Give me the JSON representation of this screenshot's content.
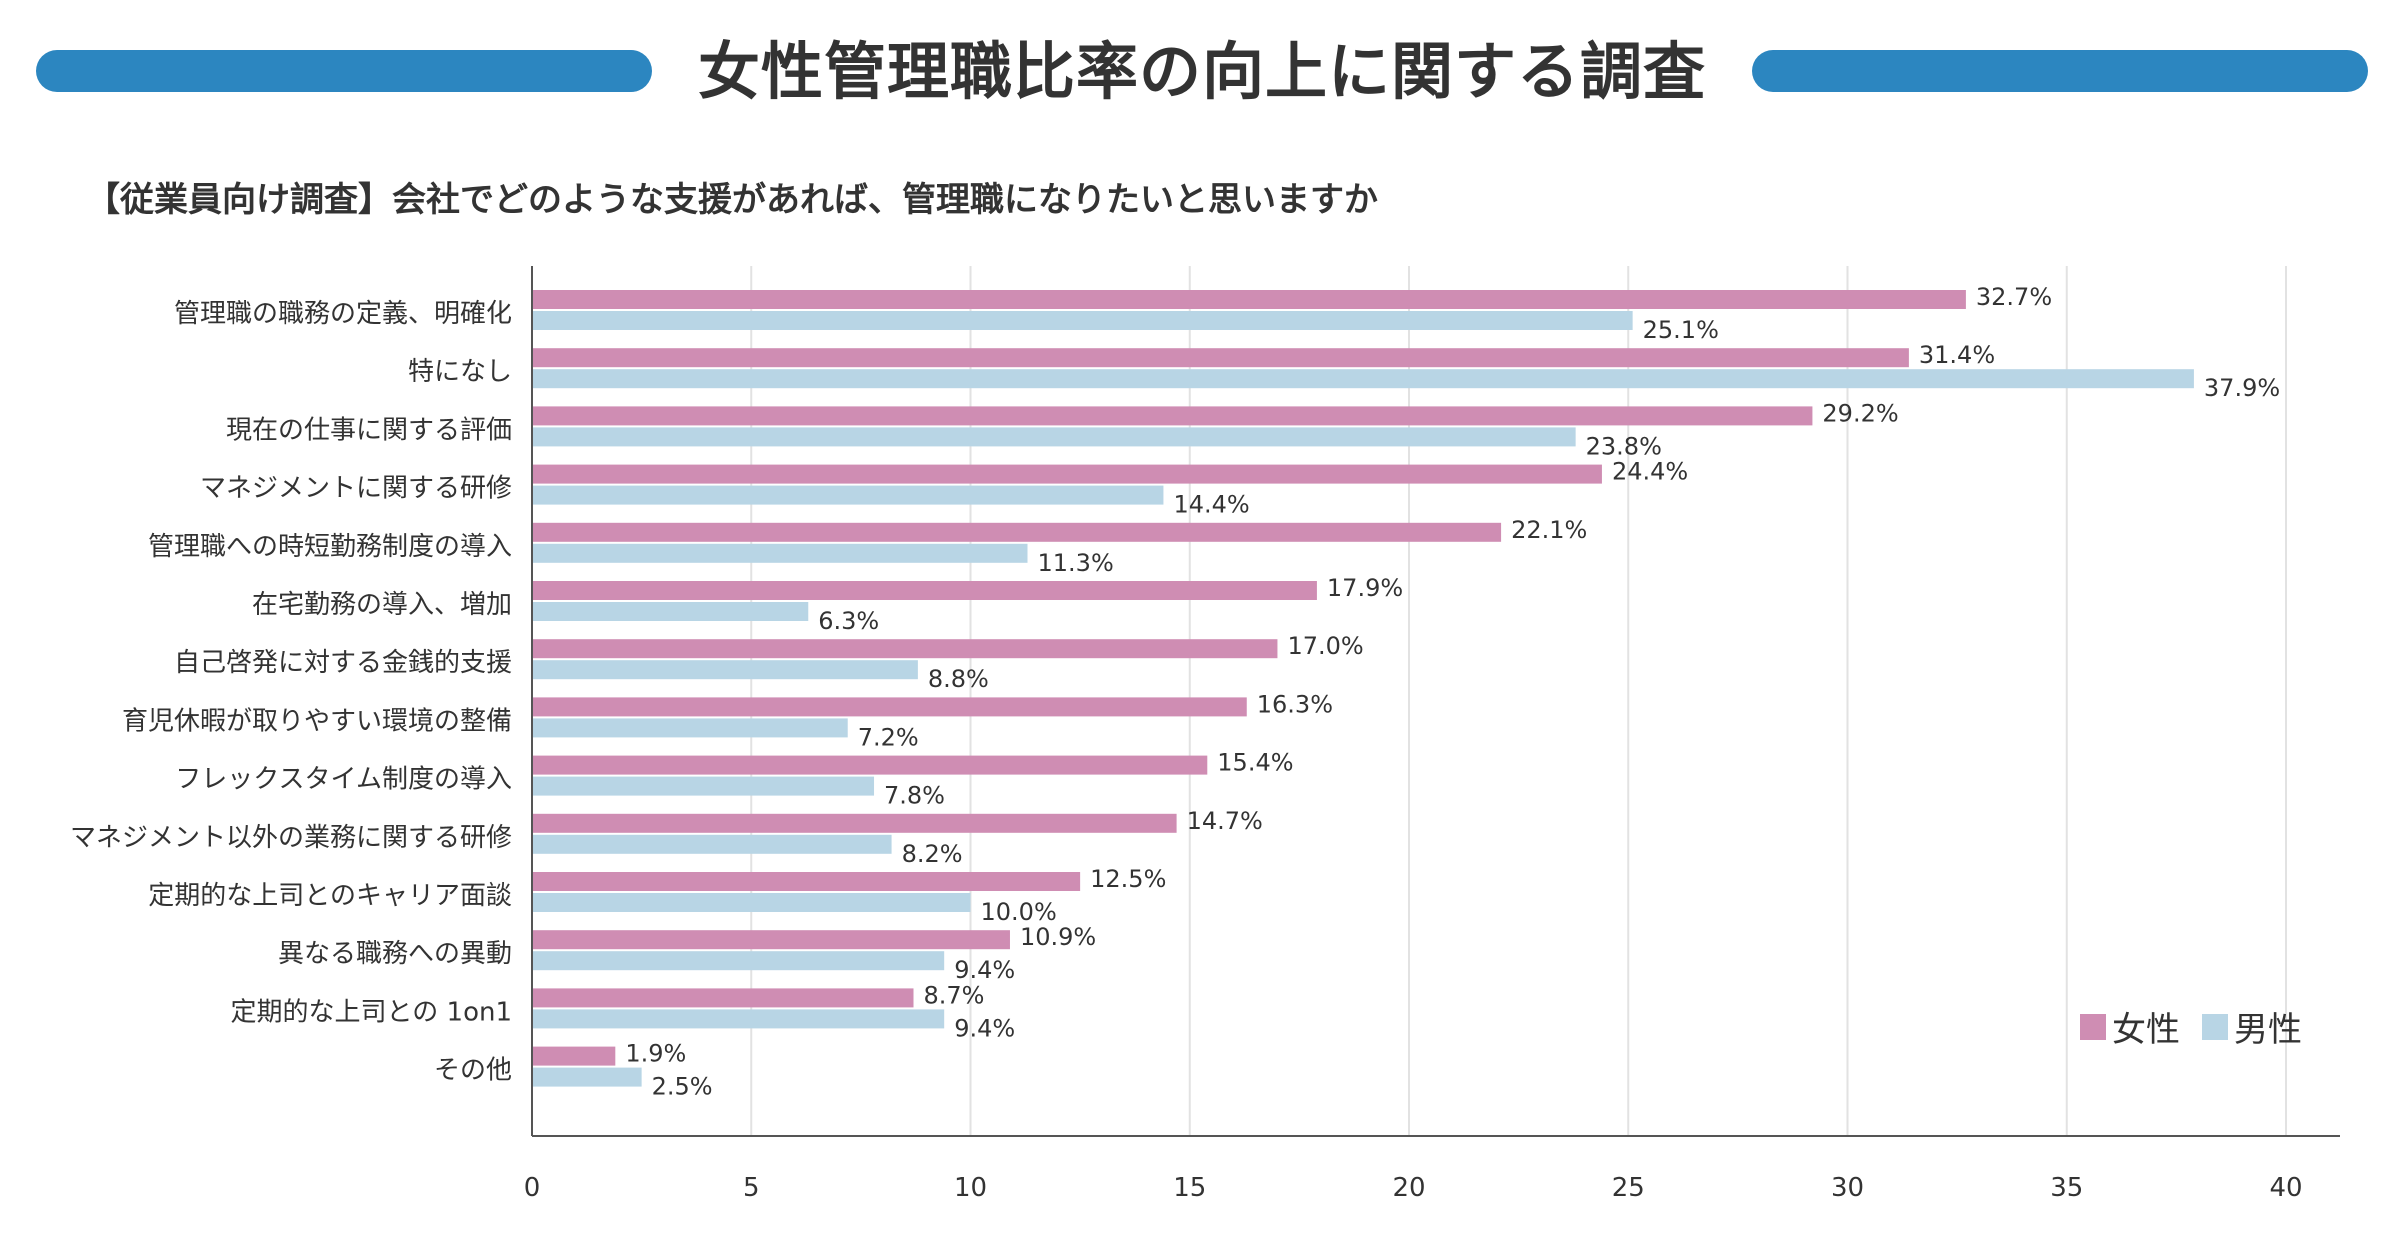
{
  "title": "女性管理職比率の向上に関する調査",
  "subtitle": "【従業員向け調査】会社でどのような支援があれば、管理職になりたいと思いますか",
  "colors": {
    "accent": "#2c86c0",
    "female": "#cf8db3",
    "male": "#b8d5e5"
  },
  "chart_data": {
    "type": "bar",
    "orientation": "horizontal",
    "categories": [
      "管理職の職務の定義、明確化",
      "特になし",
      "現在の仕事に関する評価",
      "マネジメントに関する研修",
      "管理職への時短勤務制度の導入",
      "在宅勤務の導入、増加",
      "自己啓発に対する金銭的支援",
      "育児休暇が取りやすい環境の整備",
      "フレックスタイム制度の導入",
      "マネジメント以外の業務に関する研修",
      "定期的な上司とのキャリア面談",
      "異なる職務への異動",
      "定期的な上司との 1on1",
      "その他"
    ],
    "series": [
      {
        "name": "女性",
        "values": [
          32.7,
          31.4,
          29.2,
          24.4,
          22.1,
          17.9,
          17.0,
          16.3,
          15.4,
          14.7,
          12.5,
          10.9,
          8.7,
          1.9
        ],
        "labels": [
          "32.7%",
          "31.4%",
          "29.2%",
          "24.4%",
          "22.1%",
          "17.9%",
          "17.0%",
          "16.3%",
          "15.4%",
          "14.7%",
          "12.5%",
          "10.9%",
          "8.7%",
          "1.9%"
        ]
      },
      {
        "name": "男性",
        "values": [
          25.1,
          37.9,
          23.8,
          14.4,
          11.3,
          6.3,
          8.8,
          7.2,
          7.8,
          8.2,
          10.0,
          9.4,
          9.4,
          2.5
        ],
        "labels": [
          "25.1%",
          "37.9%",
          "23.8%",
          "14.4%",
          "11.3%",
          "6.3%",
          "8.8%",
          "7.2%",
          "7.8%",
          "8.2%",
          "10.0%",
          "9.4%",
          "9.4%",
          "2.5%"
        ]
      }
    ],
    "xlim": [
      0,
      40
    ],
    "xticks": [
      "0",
      "5",
      "10",
      "15",
      "20",
      "25",
      "30",
      "35",
      "40"
    ],
    "grid": true,
    "legend_position": "bottom-right"
  }
}
